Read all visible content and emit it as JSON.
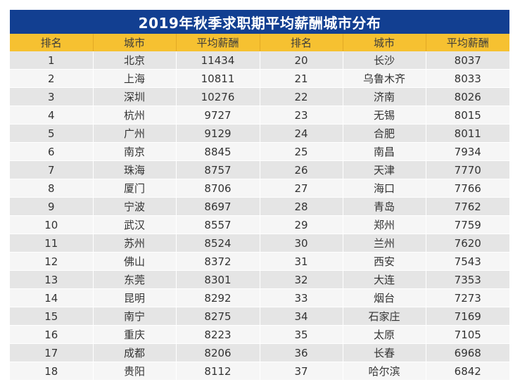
{
  "title": "2019年秋季求职期平均薪酬城市分布",
  "colors": {
    "title_bg": "#123f91",
    "header_bg": "#f6c131",
    "row_odd": "#e5e5e5",
    "row_even": "#f6f6f6"
  },
  "headers": [
    "排名",
    "城市",
    "平均薪酬",
    "排名",
    "城市",
    "平均薪酬"
  ],
  "rows": [
    [
      "1",
      "北京",
      "11434",
      "20",
      "长沙",
      "8037"
    ],
    [
      "2",
      "上海",
      "10811",
      "21",
      "乌鲁木齐",
      "8033"
    ],
    [
      "3",
      "深圳",
      "10276",
      "22",
      "济南",
      "8026"
    ],
    [
      "4",
      "杭州",
      "9727",
      "23",
      "无锡",
      "8015"
    ],
    [
      "5",
      "广州",
      "9129",
      "24",
      "合肥",
      "8011"
    ],
    [
      "6",
      "南京",
      "8845",
      "25",
      "南昌",
      "7934"
    ],
    [
      "7",
      "珠海",
      "8757",
      "26",
      "天津",
      "7770"
    ],
    [
      "8",
      "厦门",
      "8706",
      "27",
      "海口",
      "7766"
    ],
    [
      "9",
      "宁波",
      "8697",
      "28",
      "青岛",
      "7762"
    ],
    [
      "10",
      "武汉",
      "8557",
      "29",
      "郑州",
      "7759"
    ],
    [
      "11",
      "苏州",
      "8524",
      "30",
      "兰州",
      "7620"
    ],
    [
      "12",
      "佛山",
      "8372",
      "31",
      "西安",
      "7543"
    ],
    [
      "13",
      "东莞",
      "8301",
      "32",
      "大连",
      "7353"
    ],
    [
      "14",
      "昆明",
      "8292",
      "33",
      "烟台",
      "7273"
    ],
    [
      "15",
      "南宁",
      "8275",
      "34",
      "石家庄",
      "7169"
    ],
    [
      "16",
      "重庆",
      "8223",
      "35",
      "太原",
      "7105"
    ],
    [
      "17",
      "成都",
      "8206",
      "36",
      "长春",
      "6968"
    ],
    [
      "18",
      "贵阳",
      "8112",
      "37",
      "哈尔滨",
      "6842"
    ]
  ]
}
